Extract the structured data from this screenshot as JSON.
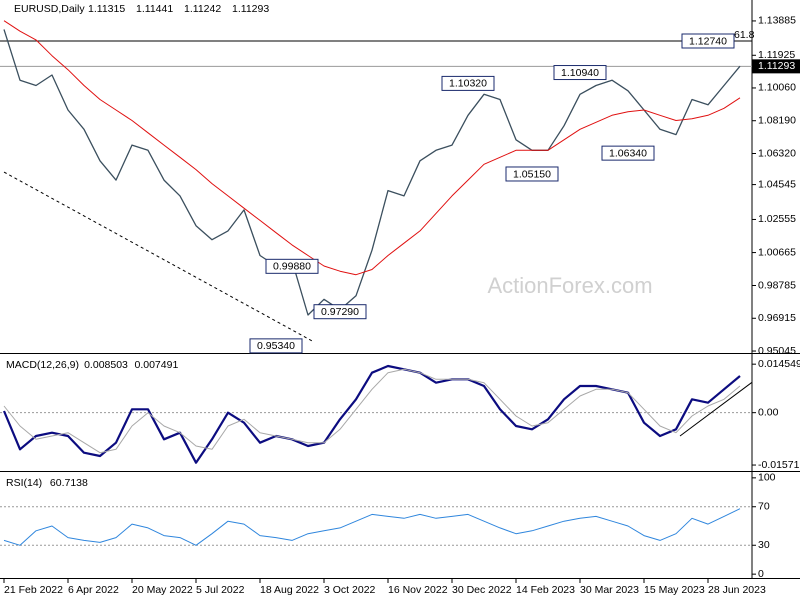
{
  "chart_data": {
    "type": "line",
    "title": "EURUSD,Daily",
    "ohlc": {
      "open": 1.11315,
      "high": 1.11441,
      "low": 1.11242,
      "close": 1.11293
    },
    "watermark": "ActionForex.com",
    "categories": [
      "21 Feb 2022",
      null,
      null,
      null,
      "6 Apr 2022",
      null,
      null,
      null,
      "20 May 2022",
      null,
      null,
      null,
      "5 Jul 2022",
      null,
      null,
      null,
      "18 Aug 2022",
      null,
      null,
      null,
      "3 Oct 2022",
      null,
      null,
      null,
      "16 Nov 2022",
      null,
      null,
      null,
      "30 Dec 2022",
      null,
      null,
      null,
      "14 Feb 2023",
      null,
      null,
      null,
      "30 Mar 2023",
      null,
      null,
      null,
      "15 May 2023",
      null,
      null,
      null,
      "28 Jun 2023",
      null,
      null
    ],
    "panels": [
      {
        "ylim": [
          0.9499,
          1.1508
        ],
        "yticks": [
          1.13885,
          1.11925,
          {
            "value": 1.1006,
            "label": "1.10060"
          },
          {
            "value": 1.0819,
            "label": "1.08190"
          },
          {
            "value": 1.0632,
            "label": "1.06320"
          },
          1.04545,
          1.02555,
          1.00665,
          0.98785,
          0.96915,
          0.95045
        ],
        "series": [
          {
            "color": "#3b4f5e",
            "width": 1.3,
            "values": [
              1.134,
              1.105,
              1.102,
              1.108,
              1.088,
              1.077,
              1.059,
              1.048,
              1.068,
              1.065,
              1.048,
              1.039,
              1.022,
              1.014,
              1.019,
              1.031,
              1.005,
              0.999,
              1.002,
              0.971,
              0.98,
              0.974,
              0.982,
              1.008,
              1.042,
              1.039,
              1.059,
              1.065,
              1.068,
              1.085,
              1.097,
              1.094,
              1.071,
              1.065,
              1.065,
              1.079,
              1.097,
              1.102,
              1.105,
              1.099,
              1.088,
              1.077,
              1.074,
              1.094,
              1.091,
              1.102,
              1.113
            ]
          },
          {
            "color": "#e01010",
            "width": 1,
            "values": [
              1.139,
              1.133,
              1.128,
              1.119,
              1.111,
              1.102,
              1.094,
              1.088,
              1.082,
              1.075,
              1.068,
              1.061,
              1.054,
              1.046,
              1.039,
              1.032,
              1.025,
              1.018,
              1.011,
              1.005,
              0.999,
              0.996,
              0.994,
              0.997,
              1.005,
              1.012,
              1.019,
              1.029,
              1.039,
              1.048,
              1.057,
              1.061,
              1.065,
              1.065,
              1.065,
              1.071,
              1.077,
              1.081,
              1.085,
              1.087,
              1.088,
              1.085,
              1.082,
              1.083,
              1.085,
              1.089,
              1.095
            ]
          }
        ],
        "hlines": [
          1.1274
        ],
        "fib_label": "61.8",
        "annotations": [
          {
            "label": "1.12740",
            "value": 1.1274,
            "at": 44
          },
          {
            "label": "1.10320",
            "value": 1.1032,
            "at": 29
          },
          {
            "label": "1.10940",
            "value": 1.1094,
            "at": 36
          },
          {
            "label": "1.06340",
            "value": 1.0634,
            "at": 39
          },
          {
            "label": "1.05150",
            "value": 1.0515,
            "at": 33
          },
          {
            "label": "0.99880",
            "value": 0.9988,
            "at": 18
          },
          {
            "label": "0.97290",
            "value": 0.9729,
            "at": 21
          },
          {
            "label": "0.95340",
            "value": 0.9534,
            "at": 17
          }
        ],
        "trendlines": [
          {
            "from": [
              0,
              1.0526
            ],
            "to": [
              19.4,
              0.9555
            ],
            "dashed": true
          }
        ]
      },
      {
        "title": "MACD(12,26,9)",
        "readout": [
          0.008503,
          0.007491
        ],
        "ylim": [
          -0.0172,
          0.017
        ],
        "yticks": [
          0.014549,
          {
            "value": 0,
            "label": "0.00"
          },
          -0.015712
        ],
        "levels": [
          0
        ],
        "series": [
          {
            "color": "#0c0c80",
            "width": 2.2,
            "values": [
              0.0005,
              -0.011,
              -0.007,
              -0.006,
              -0.007,
              -0.012,
              -0.013,
              -0.009,
              0.001,
              0.001,
              -0.008,
              -0.006,
              -0.015,
              -0.008,
              0.0,
              -0.003,
              -0.009,
              -0.007,
              -0.008,
              -0.01,
              -0.009,
              -0.002,
              0.004,
              0.012,
              0.014,
              0.013,
              0.012,
              0.009,
              0.01,
              0.01,
              0.008,
              0.001,
              -0.004,
              -0.005,
              -0.002,
              0.004,
              0.008,
              0.008,
              0.007,
              0.006,
              -0.003,
              -0.007,
              -0.005,
              0.004,
              0.003,
              0.007,
              0.011
            ]
          },
          {
            "color": "#a8a8a8",
            "width": 1,
            "values": [
              0.002,
              -0.004,
              -0.008,
              -0.007,
              -0.006,
              -0.009,
              -0.012,
              -0.011,
              -0.004,
              0.0,
              -0.004,
              -0.006,
              -0.01,
              -0.011,
              -0.004,
              -0.002,
              -0.006,
              -0.007,
              -0.008,
              -0.009,
              -0.009,
              -0.005,
              0.001,
              0.007,
              0.012,
              0.013,
              0.012,
              0.01,
              0.01,
              0.01,
              0.009,
              0.004,
              -0.001,
              -0.004,
              -0.003,
              0.001,
              0.005,
              0.007,
              0.007,
              0.006,
              0.001,
              -0.004,
              -0.006,
              -0.001,
              0.002,
              0.004,
              0.008
            ]
          }
        ],
        "trendlines": [
          {
            "from": [
              42.25,
              -0.007
            ],
            "to": [
              46.75,
              0.0091
            ],
            "dashed": false
          }
        ]
      },
      {
        "title": "RSI(14)",
        "readout": [
          60.7138
        ],
        "ylim": [
          -4,
          104
        ],
        "yticks": [
          100,
          70,
          30,
          0
        ],
        "levels": [
          70,
          30
        ],
        "series": [
          {
            "color": "#2f86dd",
            "width": 1,
            "values": [
              35,
              30,
              45,
              50,
              38,
              35,
              33,
              38,
              52,
              48,
              40,
              38,
              30,
              42,
              55,
              52,
              40,
              38,
              35,
              42,
              45,
              48,
              55,
              62,
              60,
              58,
              62,
              58,
              60,
              62,
              55,
              48,
              42,
              45,
              50,
              55,
              58,
              60,
              55,
              50,
              40,
              35,
              42,
              58,
              52,
              60,
              68
            ]
          }
        ]
      }
    ]
  }
}
